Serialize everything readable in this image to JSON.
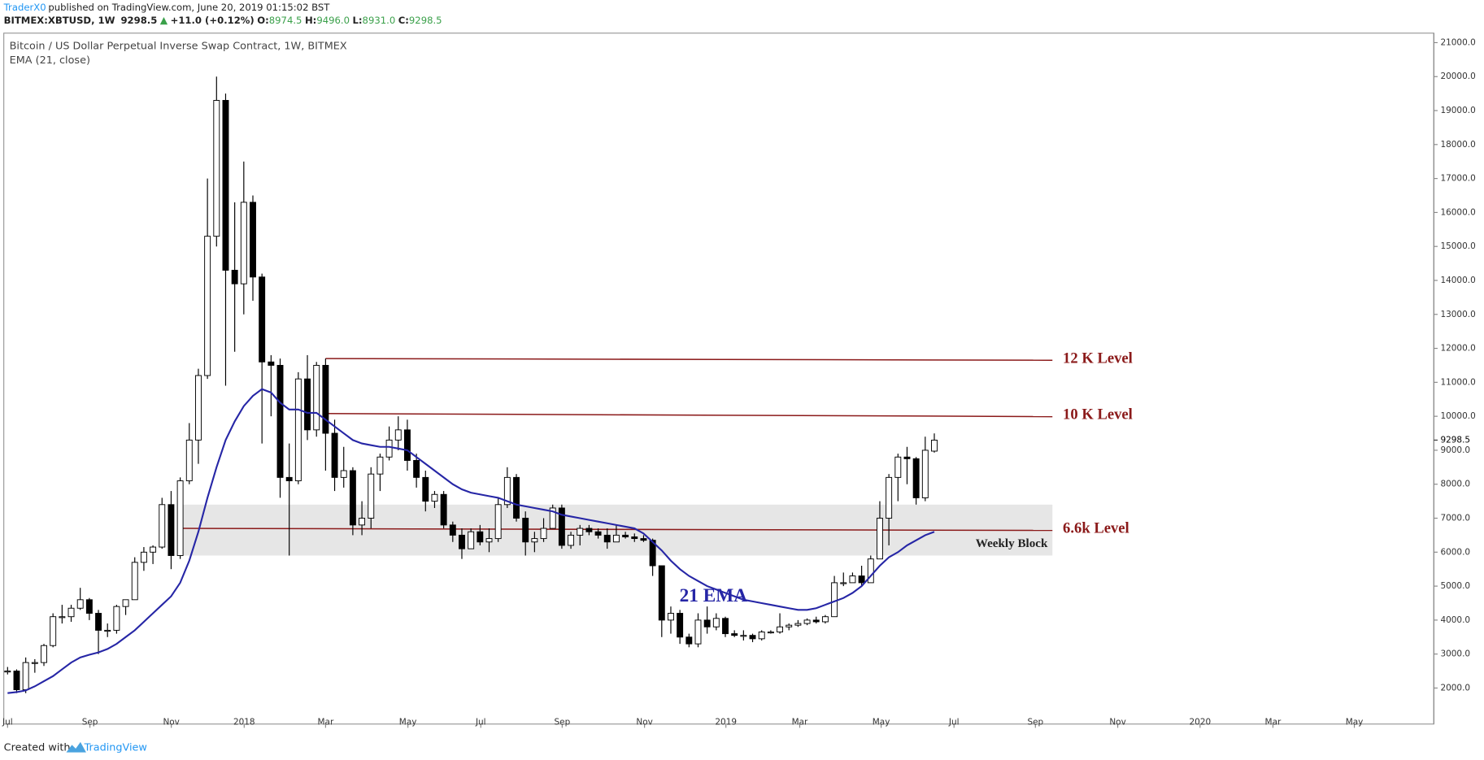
{
  "header": {
    "author": "TraderX0",
    "published": "published on TradingView.com, June 20, 2019 01:15:02 BST",
    "symbol": "BITMEX:XBTUSD, 1W",
    "last": "9298.5",
    "change": "+11.0 (+0.12%)",
    "ohlc": [
      {
        "key": "O:",
        "value": "8974.5"
      },
      {
        "key": "H:",
        "value": "9496.0"
      },
      {
        "key": "L:",
        "value": "8931.0"
      },
      {
        "key": "C:",
        "value": "9298.5"
      }
    ]
  },
  "chart_data": {
    "type": "candlestick",
    "title": "Bitcoin / US Dollar Perpetual Inverse Swap Contract, 1W, BITMEX",
    "subtitle": "EMA (21, close)",
    "open": [
      2500,
      2500,
      1950,
      2750,
      2750,
      3250,
      4100,
      4100,
      4350,
      4600,
      4200,
      3700,
      3700,
      4400,
      4600,
      5700,
      6000,
      6150,
      7400,
      5900,
      8100,
      9300,
      11200,
      15300,
      19300,
      14300,
      13900,
      16300,
      14100,
      11600,
      11500,
      8200,
      8100,
      11100,
      9600,
      11500,
      9500,
      8200,
      8400,
      6800,
      7000,
      8300,
      8800,
      9300,
      9600,
      8700,
      8200,
      7500,
      7700,
      6800,
      6500,
      6100,
      6600,
      6300,
      6400,
      7400,
      8200,
      7000,
      6300,
      6400,
      6700,
      7300,
      6200,
      6500,
      6700,
      6600,
      6500,
      6300,
      6500,
      6450,
      6400,
      6350,
      5600,
      4000,
      4200,
      3500,
      3300,
      4000,
      3800,
      4050,
      3600,
      3550,
      3550,
      3450,
      3650,
      3650,
      3800,
      3850,
      3900,
      4000,
      3950,
      4100,
      5100,
      5100,
      5300,
      5100,
      5800,
      7000,
      8200,
      8800,
      8750,
      7600,
      8974.5
    ],
    "high": [
      2620,
      2550,
      2900,
      2850,
      3300,
      4200,
      4450,
      4450,
      4950,
      4650,
      4300,
      3900,
      4450,
      4600,
      5850,
      6150,
      6200,
      7600,
      7800,
      8200,
      9800,
      11400,
      17000,
      20000,
      19500,
      16300,
      17500,
      16500,
      14200,
      11800,
      11700,
      9200,
      11300,
      11800,
      11600,
      11700,
      9900,
      9100,
      8500,
      7500,
      8500,
      8900,
      9700,
      10000,
      9900,
      8900,
      8400,
      7800,
      7800,
      6900,
      6700,
      6700,
      6800,
      6700,
      7600,
      8500,
      8300,
      7200,
      6600,
      7000,
      7400,
      7400,
      6600,
      6800,
      6800,
      6700,
      6700,
      6800,
      6600,
      6550,
      6500,
      6400,
      5600,
      4400,
      4300,
      3600,
      4200,
      4400,
      4200,
      4100,
      3700,
      3700,
      3600,
      3700,
      3700,
      4200,
      3900,
      4000,
      4050,
      4100,
      4150,
      5300,
      5400,
      5400,
      5600,
      5900,
      7500,
      8300,
      8900,
      9100,
      8800,
      9400,
      9496
    ],
    "low": [
      2400,
      1850,
      1850,
      2450,
      2650,
      3200,
      3900,
      3950,
      4300,
      4000,
      3000,
      3500,
      3600,
      4150,
      4600,
      5450,
      5650,
      6100,
      5500,
      5800,
      8000,
      8600,
      11100,
      15000,
      10900,
      11900,
      13000,
      13400,
      9200,
      10000,
      7600,
      5900,
      8000,
      9300,
      9400,
      8400,
      7800,
      7900,
      6500,
      6500,
      6700,
      7800,
      8700,
      9000,
      8400,
      7900,
      7200,
      7300,
      6700,
      6300,
      5800,
      6100,
      6200,
      6000,
      6300,
      7300,
      6900,
      5900,
      6000,
      6300,
      6700,
      6100,
      6100,
      6200,
      6500,
      6400,
      6100,
      6300,
      6400,
      6300,
      6300,
      5300,
      3500,
      3600,
      3300,
      3200,
      3200,
      3600,
      3700,
      3500,
      3500,
      3400,
      3350,
      3400,
      3600,
      3600,
      3700,
      3800,
      3850,
      3900,
      3900,
      4100,
      5000,
      5100,
      5000,
      5100,
      5800,
      6200,
      7500,
      8000,
      7400,
      7500,
      8931
    ],
    "close": [
      2500,
      1950,
      2750,
      2750,
      3250,
      4100,
      4100,
      4350,
      4600,
      4200,
      3700,
      3700,
      4400,
      4600,
      5700,
      6000,
      6150,
      7400,
      5900,
      8100,
      9300,
      11200,
      15300,
      19300,
      14300,
      13900,
      16300,
      14100,
      11600,
      11500,
      8200,
      8100,
      11100,
      9600,
      11500,
      9500,
      8200,
      8400,
      6800,
      7000,
      8300,
      8800,
      9300,
      9600,
      8700,
      8200,
      7500,
      7700,
      6800,
      6500,
      6100,
      6600,
      6300,
      6400,
      7400,
      8200,
      7000,
      6300,
      6400,
      6700,
      7300,
      6200,
      6500,
      6700,
      6600,
      6500,
      6300,
      6500,
      6450,
      6400,
      6350,
      5600,
      4000,
      4200,
      3500,
      3300,
      4000,
      3800,
      4050,
      3600,
      3550,
      3550,
      3450,
      3650,
      3650,
      3800,
      3850,
      3900,
      4000,
      3950,
      4100,
      5100,
      5100,
      5300,
      5100,
      5800,
      7000,
      8200,
      8800,
      8750,
      7600,
      9000,
      9298.5
    ],
    "ema": {
      "color": "#2626a6",
      "values": [
        1850,
        1880,
        1930,
        2050,
        2200,
        2350,
        2550,
        2750,
        2900,
        2980,
        3050,
        3150,
        3300,
        3500,
        3700,
        3950,
        4200,
        4450,
        4700,
        5100,
        5750,
        6600,
        7600,
        8500,
        9300,
        9850,
        10300,
        10600,
        10800,
        10700,
        10400,
        10200,
        10200,
        10100,
        10100,
        9900,
        9700,
        9500,
        9300,
        9200,
        9150,
        9100,
        9100,
        9050,
        9000,
        8800,
        8600,
        8400,
        8200,
        8000,
        7850,
        7750,
        7700,
        7650,
        7600,
        7500,
        7400,
        7350,
        7300,
        7250,
        7200,
        7100,
        7050,
        7000,
        6950,
        6900,
        6850,
        6800,
        6750,
        6700,
        6550,
        6300,
        6050,
        5750,
        5500,
        5300,
        5150,
        5000,
        4900,
        4800,
        4700,
        4600,
        4550,
        4500,
        4450,
        4400,
        4350,
        4300,
        4300,
        4350,
        4450,
        4550,
        4650,
        4800,
        5000,
        5300,
        5600,
        5850,
        6000,
        6200,
        6350,
        6500,
        6600
      ]
    },
    "x_labels": [
      "Jul",
      "Sep",
      "Nov",
      "2018",
      "Mar",
      "May",
      "Jul",
      "Sep",
      "Nov",
      "2019",
      "Mar",
      "May",
      "Jul",
      "Sep",
      "Nov",
      "2020",
      "Mar",
      "May"
    ],
    "ylim": [
      940,
      21280
    ],
    "yticks": [
      {
        "value": 2000,
        "label": "2000.0"
      },
      {
        "value": 3000,
        "label": "3000.0"
      },
      {
        "value": 4000,
        "label": "4000.0"
      },
      {
        "value": 5000,
        "label": "5000.0"
      },
      {
        "value": 6000,
        "label": "6000.0"
      },
      {
        "value": 7000,
        "label": "7000.0"
      },
      {
        "value": 8000,
        "label": "8000.0"
      },
      {
        "value": 9000,
        "label": "9000.0"
      },
      {
        "value": 10000,
        "label": "10000.0"
      },
      {
        "value": 11000,
        "label": "11000.0"
      },
      {
        "value": 12000,
        "label": "12000.0"
      },
      {
        "value": 13000,
        "label": "13000.0"
      },
      {
        "value": 14000,
        "label": "14000.0"
      },
      {
        "value": 15000,
        "label": "15000.0"
      },
      {
        "value": 16000,
        "label": "16000.0"
      },
      {
        "value": 17000,
        "label": "17000.0"
      },
      {
        "value": 18000,
        "label": "18000.0"
      },
      {
        "value": 19000,
        "label": "19000.0"
      },
      {
        "value": 20000,
        "label": "20000.0"
      },
      {
        "value": 21000,
        "label": "21000.0"
      }
    ],
    "last_price": {
      "value": 9298.5,
      "label": "9298.5"
    },
    "levels": [
      {
        "label": "12 K Level",
        "start": 11700,
        "end": 11650
      },
      {
        "label": "10 K Level",
        "start": 10080,
        "end": 9990
      },
      {
        "label": "6.6k Level",
        "start": 6700,
        "end": 6640
      }
    ],
    "zone": {
      "label": "Weekly Block",
      "low": 5900,
      "high": 7400
    },
    "ema_label": "21 EMA",
    "level_color": "#8b1a1a"
  },
  "footer": {
    "text": "Created with",
    "brand": "TradingView"
  }
}
